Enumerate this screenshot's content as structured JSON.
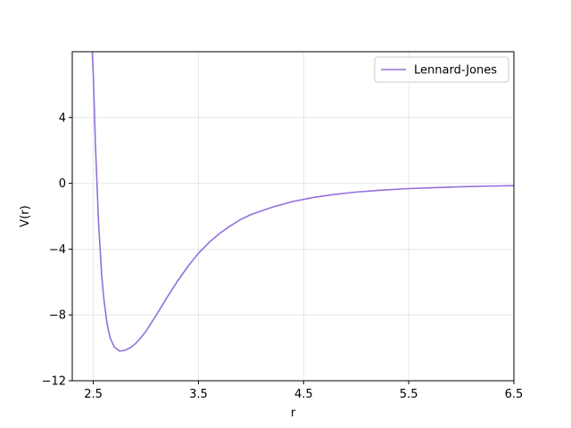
{
  "chart_data": {
    "type": "line",
    "xlabel": "r",
    "ylabel": "V(r)",
    "xlim": [
      2.3,
      6.5
    ],
    "ylim": [
      -12,
      8
    ],
    "xticks": [
      2.5,
      3.5,
      4.5,
      5.5,
      6.5
    ],
    "xtick_labels": [
      "2.5",
      "3.5",
      "4.5",
      "5.5",
      "6.5"
    ],
    "yticks": [
      -12,
      -8,
      -4,
      0,
      4
    ],
    "ytick_labels": [
      "−12",
      "−8",
      "−4",
      "0",
      "4"
    ],
    "grid": true,
    "legend_position": "top-right",
    "series": [
      {
        "name": "Lennard-Jones",
        "color": "#9370DB",
        "x": [
          2.49,
          2.5,
          2.52,
          2.55,
          2.58,
          2.6,
          2.63,
          2.66,
          2.7,
          2.75,
          2.8,
          2.85,
          2.9,
          2.95,
          3.0,
          3.1,
          3.2,
          3.3,
          3.4,
          3.5,
          3.6,
          3.7,
          3.8,
          3.9,
          4.0,
          4.2,
          4.4,
          4.6,
          4.8,
          5.0,
          5.25,
          5.5,
          5.75,
          6.0,
          6.25,
          6.5
        ],
        "y": [
          8.0,
          6.6,
          2.4,
          -2.4,
          -5.6,
          -7.0,
          -8.5,
          -9.4,
          -9.95,
          -10.2,
          -10.15,
          -10.0,
          -9.75,
          -9.4,
          -9.0,
          -8.0,
          -6.95,
          -5.95,
          -5.05,
          -4.25,
          -3.6,
          -3.05,
          -2.6,
          -2.2,
          -1.9,
          -1.45,
          -1.1,
          -0.85,
          -0.67,
          -0.53,
          -0.41,
          -0.32,
          -0.26,
          -0.21,
          -0.17,
          -0.14
        ]
      }
    ]
  }
}
